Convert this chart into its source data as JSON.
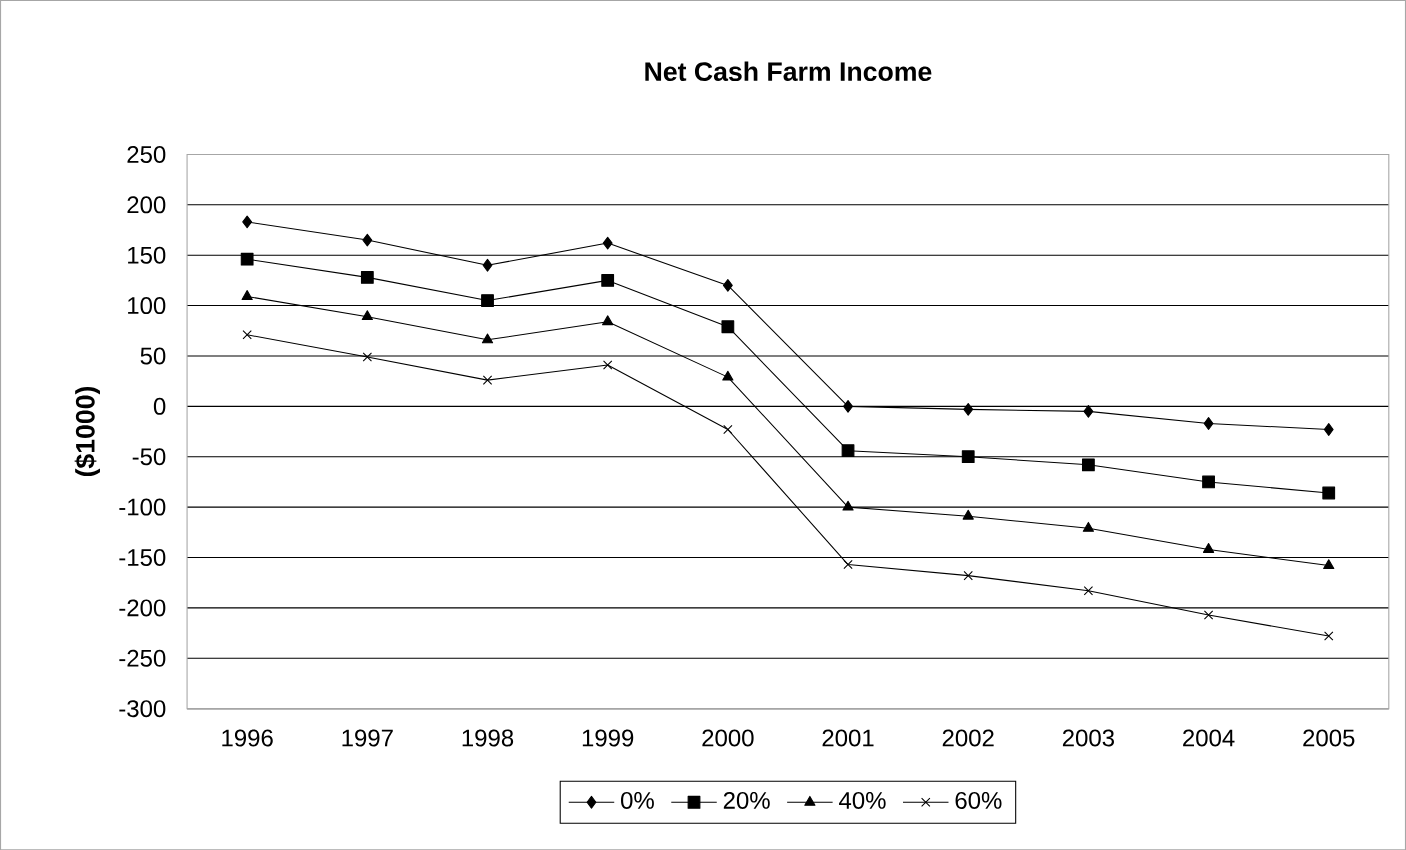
{
  "chart_data": {
    "type": "line",
    "title": "Net Cash Farm Income",
    "ylabel": "($1000)",
    "categories": [
      "1996",
      "1997",
      "1998",
      "1999",
      "2000",
      "2001",
      "2002",
      "2003",
      "2004",
      "2005"
    ],
    "series": [
      {
        "name": "0%",
        "color": "#000000",
        "marker": "diamond",
        "values": [
          183,
          165,
          140,
          162,
          120,
          0,
          -3,
          -5,
          -17,
          -23
        ]
      },
      {
        "name": "20%",
        "color": "#000000",
        "marker": "square",
        "values": [
          146,
          128,
          105,
          125,
          79,
          -44,
          -50,
          -58,
          -75,
          -86
        ]
      },
      {
        "name": "40%",
        "color": "#000000",
        "marker": "triangle",
        "values": [
          109,
          89,
          66,
          84,
          29,
          -100,
          -109,
          -121,
          -142,
          -158
        ]
      },
      {
        "name": "60%",
        "color": "#000000",
        "marker": "cross",
        "values": [
          71,
          49,
          26,
          41,
          -23,
          -157,
          -168,
          -183,
          -207,
          -228
        ]
      }
    ],
    "ylim": [
      -300,
      250
    ],
    "yticks": [
      -300,
      -250,
      -200,
      -150,
      -100,
      -50,
      0,
      50,
      100,
      150,
      200,
      250
    ],
    "grid": "y",
    "legend": "bottom",
    "line_style": "solid"
  }
}
